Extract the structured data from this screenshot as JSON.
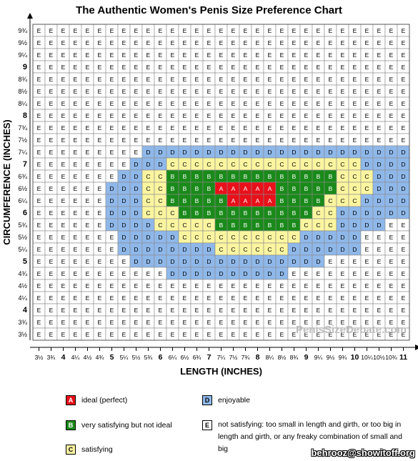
{
  "chart_data": {
    "type": "heatmap",
    "title": "The Authentic Women's Penis Size Preference Chart",
    "xlabel": "LENGTH  (INCHES)",
    "ylabel": "CIRCUMFERENCE (INCHES)",
    "x_ticks": [
      "3½",
      "3¾",
      "4",
      "4¼",
      "4½",
      "4¾",
      "5",
      "5¼",
      "5½",
      "5¾",
      "6",
      "6¼",
      "6½",
      "6¾",
      "7",
      "7¼",
      "7½",
      "7¾",
      "8",
      "8¼",
      "8½",
      "8¾",
      "9",
      "9¼",
      "9½",
      "9¾",
      "10",
      "10¼",
      "10½",
      "10¾",
      "11"
    ],
    "y_ticks_top_to_bottom": [
      "9¾",
      "9½",
      "9¼",
      "9",
      "8¾",
      "8½",
      "8¼",
      "8",
      "7¾",
      "7½",
      "7¼",
      "7",
      "6¾",
      "6½",
      "6¼",
      "6",
      "5¾",
      "5½",
      "5¼",
      "5",
      "4¾",
      "4½",
      "4¼",
      "4",
      "3¾",
      "3½"
    ],
    "grid_rows_top_to_bottom": [
      "EEEEEEEEEEEEEEEEEEEEEEEEEEEEEEE",
      "EEEEEEEEEEEEEEEEEEEEEEEEEEEEEEE",
      "EEEEEEEEEEEEEEEEEEEEEEEEEEEEEEE",
      "EEEEEEEEEEEEEEEEEEEEEEEEEEEEEEE",
      "EEEEEEEEEEEEEEEEEEEEEEEEEEEEEEE",
      "EEEEEEEEEEEEEEEEEEEEEEEEEEEEEEE",
      "EEEEEEEEEEEEEEEEEEEEEEEEEEEEEEE",
      "EEEEEEEEEEEEEEEEEEEEEEEEEEEEEEE",
      "EEEEEEEEEEEEEEEEEEEEEEEEEEEEEEE",
      "EEEEEEEEEEEEEEEEEEEEEEEEEEEEEEE",
      "EEEEEEEEEDDDDDDDDDDDDDDDDDDDDDD",
      "EEEEEEEEDDDCCCCCCCCCCCCCCCCDDDD",
      "EEEEEEEDDCCBBBBBBBBBBBBBBCCCDDD",
      "EEEEEEDDDCCBBBBAAAAABBBBBCCCDDD",
      "EEEEEEDDDCCBBBBBAAAABBBBCCCDDDD",
      "EEEEEEDDDCCCBBBBBBBBBBBCCDDDDDD",
      "EEEEEEDDDDCCCCCBBBBBBBCCCDDDDEE",
      "EEEEEEEDDDDDCCCCCCCCCCDDDDDEEEE",
      "EEEEEEEDDDDDDDDCCCCCCDDDDDDEEEE",
      "EEEEEEEEDDDDDDDDDDDDDDDDEEEEEEE",
      "EEEEEEEEEEEDDDDDDDDDDEEEEEEEEEE",
      "EEEEEEEEEEEEEEEEEEEEEEEEEEEEEEE",
      "EEEEEEEEEEEEEEEEEEEEEEEEEEEEEEE",
      "EEEEEEEEEEEEEEEEEEEEEEEEEEEEEEE",
      "EEEEEEEEEEEEEEEEEEEEEEEEEEEEEEE",
      "EEEEEEEEEEEEEEEEEEEEEEEEEEEEEEE"
    ],
    "categories": {
      "A": {
        "label": "ideal (perfect)",
        "color": "#e8101a"
      },
      "B": {
        "label": "very satisfying but not ideal",
        "color": "#1a8a1a"
      },
      "C": {
        "label": "satisfying",
        "color": "#fbf5a0"
      },
      "D": {
        "label": "enjoyable",
        "color": "#8fb8ea"
      },
      "E": {
        "label": "not satisfying: too small in length and girth, or too big in length and girth, or any freaky combination of small and big",
        "color": "#ffffff"
      }
    },
    "watermark": "PenisSizeDebate.com"
  },
  "legend": [
    {
      "code": "A",
      "label": "ideal (perfect)"
    },
    {
      "code": "B",
      "label": "very satisfying but not ideal"
    },
    {
      "code": "C",
      "label": "satisfying"
    },
    {
      "code": "D",
      "label": "enjoyable"
    },
    {
      "code": "E",
      "label": "not satisfying: too small in length and girth, or too big in length and girth, or any freaky combination of small and big"
    }
  ],
  "footer_credit": "behrooz@showitoff.org"
}
